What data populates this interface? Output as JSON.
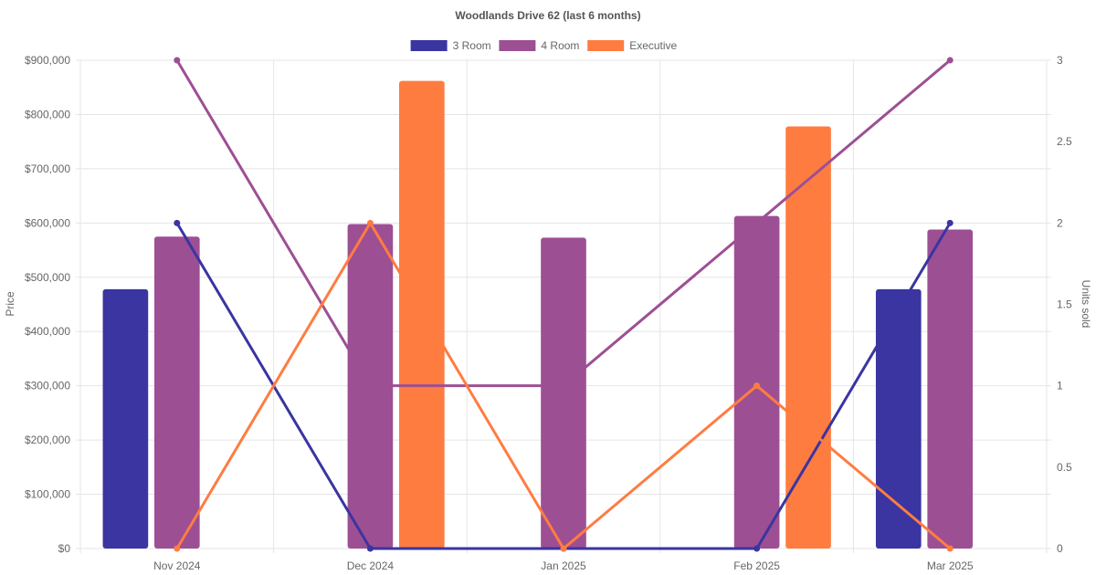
{
  "chart_data": {
    "type": "bar",
    "title": "Woodlands Drive 62 (last 6 months)",
    "categories": [
      "Nov 2024",
      "Dec 2024",
      "Jan 2025",
      "Feb 2025",
      "Mar 2025"
    ],
    "y_left": {
      "label": "Price",
      "ylim": [
        0,
        900000
      ],
      "ticks": [
        "$0",
        "$100,000",
        "$200,000",
        "$300,000",
        "$400,000",
        "$500,000",
        "$600,000",
        "$700,000",
        "$800,000",
        "$900,000"
      ]
    },
    "y_right": {
      "label": "Units sold",
      "ylim": [
        0,
        3
      ],
      "ticks": [
        "0",
        "0.5",
        "1",
        "1.5",
        "2",
        "2.5",
        "3"
      ]
    },
    "legend": {
      "placement": "top-center"
    },
    "grid": true,
    "series": [
      {
        "name": "3 Room",
        "color": "#3a35a0",
        "bar_values": [
          478000,
          null,
          null,
          null,
          478000
        ],
        "units_sold": [
          2,
          0,
          0,
          0,
          2
        ]
      },
      {
        "name": "4 Room",
        "color": "#9d4f94",
        "bar_values": [
          575000,
          598000,
          573000,
          613000,
          588000
        ],
        "units_sold": [
          3,
          1,
          1,
          2,
          3
        ]
      },
      {
        "name": "Executive",
        "color": "#ff7c41",
        "bar_values": [
          null,
          862000,
          null,
          778000,
          null
        ],
        "units_sold": [
          0,
          2,
          0,
          1,
          0
        ]
      }
    ]
  }
}
